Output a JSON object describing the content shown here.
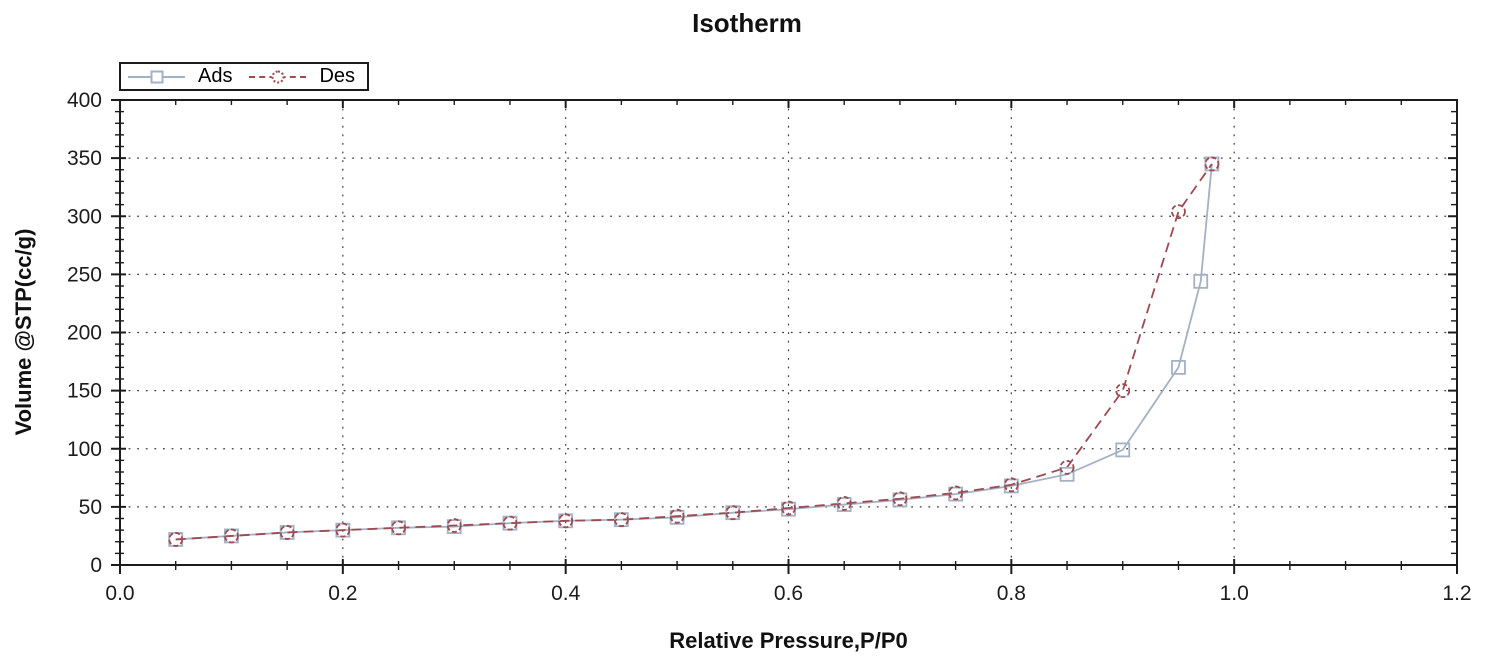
{
  "chart_data": {
    "type": "line",
    "title": "Isotherm",
    "xlabel": "Relative Pressure,P/P0",
    "ylabel": "Volume @STP(cc/g)",
    "xlim": [
      0.0,
      1.2
    ],
    "ylim": [
      0,
      400
    ],
    "x_tick_values": [
      0.0,
      0.2,
      0.4,
      0.6,
      0.8,
      1.0,
      1.2
    ],
    "x_tick_labels": [
      "0.0",
      "0.2",
      "0.4",
      "0.6",
      "0.8",
      "1.0",
      "1.2"
    ],
    "x_minor_step": 0.05,
    "y_tick_values": [
      0,
      50,
      100,
      150,
      200,
      250,
      300,
      350,
      400
    ],
    "y_tick_labels": [
      "0",
      "50",
      "100",
      "150",
      "200",
      "250",
      "300",
      "350",
      "400"
    ],
    "y_minor_step": 10,
    "grid": "dotted-at-major-ticks",
    "legend_position": "top-left",
    "colors": {
      "axes": "#1c1c1c",
      "grid": "#3c3c3c",
      "tick_text": "#1c1c1c"
    },
    "series": [
      {
        "name": "Ads",
        "marker": "square",
        "line_style": "solid",
        "color": "#a3b1c3",
        "points": [
          [
            0.05,
            22
          ],
          [
            0.1,
            25
          ],
          [
            0.15,
            28
          ],
          [
            0.2,
            30
          ],
          [
            0.25,
            32
          ],
          [
            0.3,
            33
          ],
          [
            0.35,
            36
          ],
          [
            0.4,
            38
          ],
          [
            0.45,
            39
          ],
          [
            0.5,
            41
          ],
          [
            0.55,
            45
          ],
          [
            0.6,
            48
          ],
          [
            0.65,
            52
          ],
          [
            0.7,
            56
          ],
          [
            0.75,
            61
          ],
          [
            0.8,
            68
          ],
          [
            0.85,
            78
          ],
          [
            0.9,
            99
          ],
          [
            0.95,
            170
          ],
          [
            0.97,
            244
          ],
          [
            0.98,
            345
          ]
        ]
      },
      {
        "name": "Des",
        "marker": "circle",
        "line_style": "dashed",
        "color": "#9d4a52",
        "points": [
          [
            0.05,
            22
          ],
          [
            0.1,
            25
          ],
          [
            0.15,
            28
          ],
          [
            0.2,
            30
          ],
          [
            0.25,
            32
          ],
          [
            0.3,
            34
          ],
          [
            0.35,
            36
          ],
          [
            0.4,
            38
          ],
          [
            0.45,
            39
          ],
          [
            0.5,
            42
          ],
          [
            0.55,
            45
          ],
          [
            0.6,
            49
          ],
          [
            0.65,
            53
          ],
          [
            0.7,
            57
          ],
          [
            0.75,
            62
          ],
          [
            0.8,
            69
          ],
          [
            0.85,
            84
          ],
          [
            0.9,
            150
          ],
          [
            0.95,
            304
          ],
          [
            0.98,
            345
          ]
        ]
      }
    ]
  }
}
